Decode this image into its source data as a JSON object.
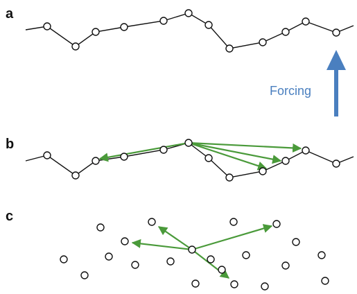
{
  "panels": {
    "a": {
      "label": "a"
    },
    "b": {
      "label": "b"
    },
    "c": {
      "label": "c"
    }
  },
  "forcing": {
    "label": "Forcing"
  },
  "colors": {
    "line": "#111111",
    "node_stroke": "#111111",
    "node_fill": "#ffffff",
    "arrow_green": "#4a9a3a",
    "forcing_blue": "#4a7fbf"
  }
}
